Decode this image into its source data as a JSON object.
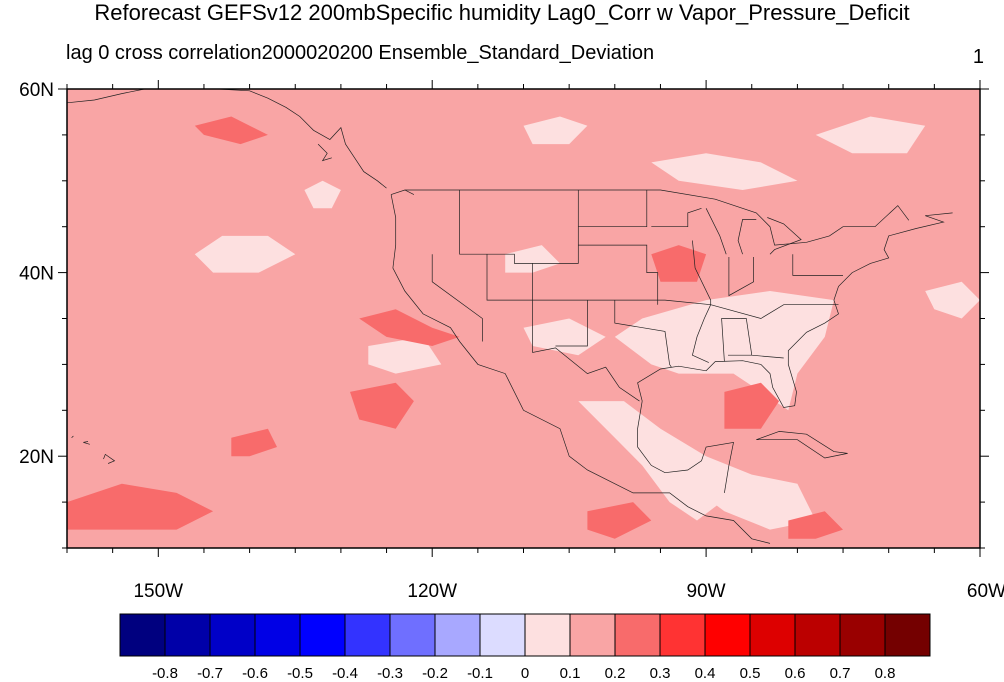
{
  "title": "Reforecast GEFSv12 200mbSpecific humidity Lag0_Corr w Vapor_Pressure_Deficit",
  "subtitle": "lag 0 cross correlation2000020200 Ensemble_Standard_Deviation",
  "corner_label": "1",
  "map": {
    "lon_range": [
      -160,
      -60
    ],
    "lat_range": [
      10,
      60
    ],
    "x_ticks": [
      {
        "lon": -150,
        "label": "150W"
      },
      {
        "lon": -120,
        "label": "120W"
      },
      {
        "lon": -90,
        "label": "90W"
      },
      {
        "lon": -60,
        "label": "60W"
      }
    ],
    "y_ticks": [
      {
        "lat": 60,
        "label": "60N"
      },
      {
        "lat": 40,
        "label": "40N"
      },
      {
        "lat": 20,
        "label": "20N"
      }
    ],
    "background_level_color": "#f9a5a5",
    "regions": [
      {
        "level": "0-0.1",
        "color": "#fde0e0",
        "points": [
          [
            -100,
            33
          ],
          [
            -96,
            30
          ],
          [
            -93,
            29
          ],
          [
            -87,
            29
          ],
          [
            -84,
            27
          ],
          [
            -81,
            25
          ],
          [
            -80,
            29
          ],
          [
            -77,
            33
          ],
          [
            -76,
            37
          ],
          [
            -83,
            38
          ],
          [
            -90,
            37
          ],
          [
            -97,
            35
          ]
        ]
      },
      {
        "level": "0-0.1",
        "color": "#fde0e0",
        "points": [
          [
            -104,
            26
          ],
          [
            -100,
            22
          ],
          [
            -97,
            19
          ],
          [
            -94,
            15
          ],
          [
            -91,
            13
          ],
          [
            -87,
            16
          ],
          [
            -90,
            20
          ],
          [
            -95,
            23
          ],
          [
            -99,
            26
          ]
        ]
      },
      {
        "level": "0-0.1",
        "color": "#fde0e0",
        "points": [
          [
            -94,
            22
          ],
          [
            -90,
            20
          ],
          [
            -85,
            18
          ],
          [
            -80,
            17
          ],
          [
            -78,
            13
          ],
          [
            -83,
            12
          ],
          [
            -88,
            14
          ],
          [
            -92,
            17
          ]
        ]
      },
      {
        "level": "0-0.1",
        "color": "#fde0e0",
        "points": [
          [
            -146,
            42
          ],
          [
            -143,
            44
          ],
          [
            -138,
            44
          ],
          [
            -135,
            42
          ],
          [
            -139,
            40
          ],
          [
            -144,
            40
          ]
        ]
      },
      {
        "level": "0-0.1",
        "color": "#fde0e0",
        "points": [
          [
            -134,
            49
          ],
          [
            -132,
            50
          ],
          [
            -130,
            49
          ],
          [
            -131,
            47
          ],
          [
            -133,
            47
          ]
        ]
      },
      {
        "level": "0-0.1",
        "color": "#fde0e0",
        "points": [
          [
            -127,
            32
          ],
          [
            -121,
            33
          ],
          [
            -119,
            30
          ],
          [
            -124,
            29
          ],
          [
            -127,
            30
          ]
        ]
      },
      {
        "level": "0-0.1",
        "color": "#fde0e0",
        "points": [
          [
            -110,
            34
          ],
          [
            -105,
            35
          ],
          [
            -101,
            33
          ],
          [
            -104,
            31
          ],
          [
            -109,
            32
          ]
        ]
      },
      {
        "level": "0-0.1",
        "color": "#fde0e0",
        "points": [
          [
            -96,
            52
          ],
          [
            -90,
            53
          ],
          [
            -84,
            52
          ],
          [
            -80,
            50
          ],
          [
            -86,
            49
          ],
          [
            -93,
            50
          ]
        ]
      },
      {
        "level": "0-0.1",
        "color": "#fde0e0",
        "points": [
          [
            -78,
            55
          ],
          [
            -72,
            57
          ],
          [
            -66,
            56
          ],
          [
            -68,
            53
          ],
          [
            -74,
            53
          ]
        ]
      },
      {
        "level": "0-0.1",
        "color": "#fde0e0",
        "points": [
          [
            -110,
            56
          ],
          [
            -106,
            57
          ],
          [
            -103,
            56
          ],
          [
            -105,
            54
          ],
          [
            -109,
            54
          ]
        ]
      },
      {
        "level": "0-0.1",
        "color": "#fde0e0",
        "points": [
          [
            -66,
            38
          ],
          [
            -62,
            39
          ],
          [
            -60,
            37
          ],
          [
            -62,
            35
          ],
          [
            -65,
            36
          ]
        ]
      },
      {
        "level": "0-0.1",
        "color": "#fde0e0",
        "points": [
          [
            -112,
            42
          ],
          [
            -108,
            43
          ],
          [
            -106,
            41
          ],
          [
            -109,
            40
          ],
          [
            -112,
            40
          ]
        ]
      },
      {
        "level": "0.2-0.3",
        "color": "#f86b6b",
        "points": [
          [
            -160,
            15
          ],
          [
            -154,
            17
          ],
          [
            -148,
            16
          ],
          [
            -144,
            14
          ],
          [
            -148,
            12
          ],
          [
            -156,
            12
          ],
          [
            -160,
            12
          ]
        ]
      },
      {
        "level": "0.2-0.3",
        "color": "#f86b6b",
        "points": [
          [
            -129,
            27
          ],
          [
            -124,
            28
          ],
          [
            -122,
            26
          ],
          [
            -124,
            23
          ],
          [
            -128,
            24
          ]
        ]
      },
      {
        "level": "0.2-0.3",
        "color": "#f86b6b",
        "points": [
          [
            -128,
            35
          ],
          [
            -124,
            36
          ],
          [
            -120,
            34
          ],
          [
            -117,
            33
          ],
          [
            -120,
            32
          ],
          [
            -125,
            33
          ]
        ]
      },
      {
        "level": "0.2-0.3",
        "color": "#f86b6b",
        "points": [
          [
            -88,
            27
          ],
          [
            -84,
            28
          ],
          [
            -82,
            26
          ],
          [
            -84,
            23
          ],
          [
            -88,
            23
          ]
        ]
      },
      {
        "level": "0.2-0.3",
        "color": "#f86b6b",
        "points": [
          [
            -96,
            42
          ],
          [
            -93,
            43
          ],
          [
            -90,
            42
          ],
          [
            -91,
            39
          ],
          [
            -95,
            39
          ]
        ]
      },
      {
        "level": "0.2-0.3",
        "color": "#f86b6b",
        "points": [
          [
            -142,
            22
          ],
          [
            -138,
            23
          ],
          [
            -137,
            21
          ],
          [
            -140,
            20
          ],
          [
            -142,
            20
          ]
        ]
      },
      {
        "level": "0.2-0.3",
        "color": "#f86b6b",
        "points": [
          [
            -103,
            14
          ],
          [
            -98,
            15
          ],
          [
            -96,
            13
          ],
          [
            -100,
            11
          ],
          [
            -103,
            12
          ]
        ]
      },
      {
        "level": "0.2-0.3",
        "color": "#f86b6b",
        "points": [
          [
            -81,
            13
          ],
          [
            -77,
            14
          ],
          [
            -75,
            12
          ],
          [
            -78,
            11
          ],
          [
            -81,
            11
          ]
        ]
      },
      {
        "level": "0.2-0.3",
        "color": "#f86b6b",
        "points": [
          [
            -146,
            56
          ],
          [
            -142,
            57
          ],
          [
            -138,
            55
          ],
          [
            -141,
            54
          ],
          [
            -145,
            55
          ]
        ]
      }
    ]
  },
  "colorbar": {
    "labels": [
      "-0.8",
      "-0.7",
      "-0.6",
      "-0.5",
      "-0.4",
      "-0.3",
      "-0.2",
      "-0.1",
      "0",
      "0.1",
      "0.2",
      "0.3",
      "0.4",
      "0.5",
      "0.6",
      "0.7",
      "0.8"
    ],
    "colors": [
      "#00007f",
      "#0000a8",
      "#0000c8",
      "#0000e6",
      "#0000ff",
      "#3333ff",
      "#6f6fff",
      "#a8a8ff",
      "#dcdcff",
      "#fde0e0",
      "#f9a5a5",
      "#f86b6b",
      "#ff3333",
      "#ff0000",
      "#dd0000",
      "#bb0000",
      "#990000",
      "#740000"
    ]
  }
}
